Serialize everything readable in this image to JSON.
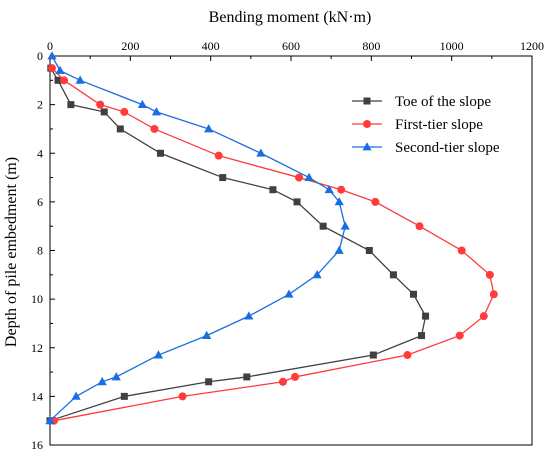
{
  "chart_data": {
    "type": "line",
    "xlabel": "Bending moment (kN·m)",
    "ylabel": "Depth of pile embedment (m)",
    "x_axis_position": "top",
    "y_axis_inverted": true,
    "xlim": [
      0,
      1200
    ],
    "ylim": [
      0,
      16
    ],
    "x_ticks": [
      "0",
      "200",
      "400",
      "600",
      "800",
      "1000",
      "1200"
    ],
    "y_ticks": [
      "0",
      "2",
      "4",
      "6",
      "8",
      "10",
      "12",
      "14",
      "16"
    ],
    "grid": false,
    "legend_position": "top-right",
    "series": [
      {
        "name": "Toe of the slope",
        "color": "#404040",
        "marker": "square",
        "points": [
          {
            "x": 2,
            "y": 0.5
          },
          {
            "x": 20,
            "y": 1
          },
          {
            "x": 52,
            "y": 2
          },
          {
            "x": 135,
            "y": 2.3
          },
          {
            "x": 175,
            "y": 3
          },
          {
            "x": 275,
            "y": 4
          },
          {
            "x": 430,
            "y": 5
          },
          {
            "x": 555,
            "y": 5.5
          },
          {
            "x": 615,
            "y": 6
          },
          {
            "x": 680,
            "y": 7
          },
          {
            "x": 795,
            "y": 8
          },
          {
            "x": 855,
            "y": 9
          },
          {
            "x": 905,
            "y": 9.8
          },
          {
            "x": 935,
            "y": 10.7
          },
          {
            "x": 925,
            "y": 11.5
          },
          {
            "x": 805,
            "y": 12.3
          },
          {
            "x": 490,
            "y": 13.2
          },
          {
            "x": 395,
            "y": 13.4
          },
          {
            "x": 185,
            "y": 14
          },
          {
            "x": 0,
            "y": 15
          }
        ]
      },
      {
        "name": "First-tier slope",
        "color": "#ff3b3b",
        "marker": "circle",
        "points": [
          {
            "x": 5,
            "y": 0.5
          },
          {
            "x": 35,
            "y": 1
          },
          {
            "x": 125,
            "y": 2
          },
          {
            "x": 185,
            "y": 2.3
          },
          {
            "x": 260,
            "y": 3
          },
          {
            "x": 420,
            "y": 4.1
          },
          {
            "x": 620,
            "y": 5
          },
          {
            "x": 725,
            "y": 5.5
          },
          {
            "x": 810,
            "y": 6
          },
          {
            "x": 920,
            "y": 7
          },
          {
            "x": 1025,
            "y": 8
          },
          {
            "x": 1095,
            "y": 9
          },
          {
            "x": 1105,
            "y": 9.8
          },
          {
            "x": 1080,
            "y": 10.7
          },
          {
            "x": 1020,
            "y": 11.5
          },
          {
            "x": 890,
            "y": 12.3
          },
          {
            "x": 610,
            "y": 13.2
          },
          {
            "x": 580,
            "y": 13.4
          },
          {
            "x": 330,
            "y": 14
          },
          {
            "x": 10,
            "y": 15
          }
        ]
      },
      {
        "name": "Second-tier slope",
        "color": "#1a6ee0",
        "marker": "triangle",
        "points": [
          {
            "x": 5,
            "y": 0
          },
          {
            "x": 25,
            "y": 0.6
          },
          {
            "x": 75,
            "y": 1
          },
          {
            "x": 230,
            "y": 2
          },
          {
            "x": 265,
            "y": 2.3
          },
          {
            "x": 395,
            "y": 3
          },
          {
            "x": 525,
            "y": 4
          },
          {
            "x": 645,
            "y": 5
          },
          {
            "x": 695,
            "y": 5.5
          },
          {
            "x": 720,
            "y": 6
          },
          {
            "x": 735,
            "y": 7
          },
          {
            "x": 720,
            "y": 8
          },
          {
            "x": 665,
            "y": 9
          },
          {
            "x": 595,
            "y": 9.8
          },
          {
            "x": 495,
            "y": 10.7
          },
          {
            "x": 390,
            "y": 11.5
          },
          {
            "x": 270,
            "y": 12.3
          },
          {
            "x": 165,
            "y": 13.2
          },
          {
            "x": 130,
            "y": 13.4
          },
          {
            "x": 65,
            "y": 14
          },
          {
            "x": 0,
            "y": 15
          }
        ]
      }
    ]
  }
}
